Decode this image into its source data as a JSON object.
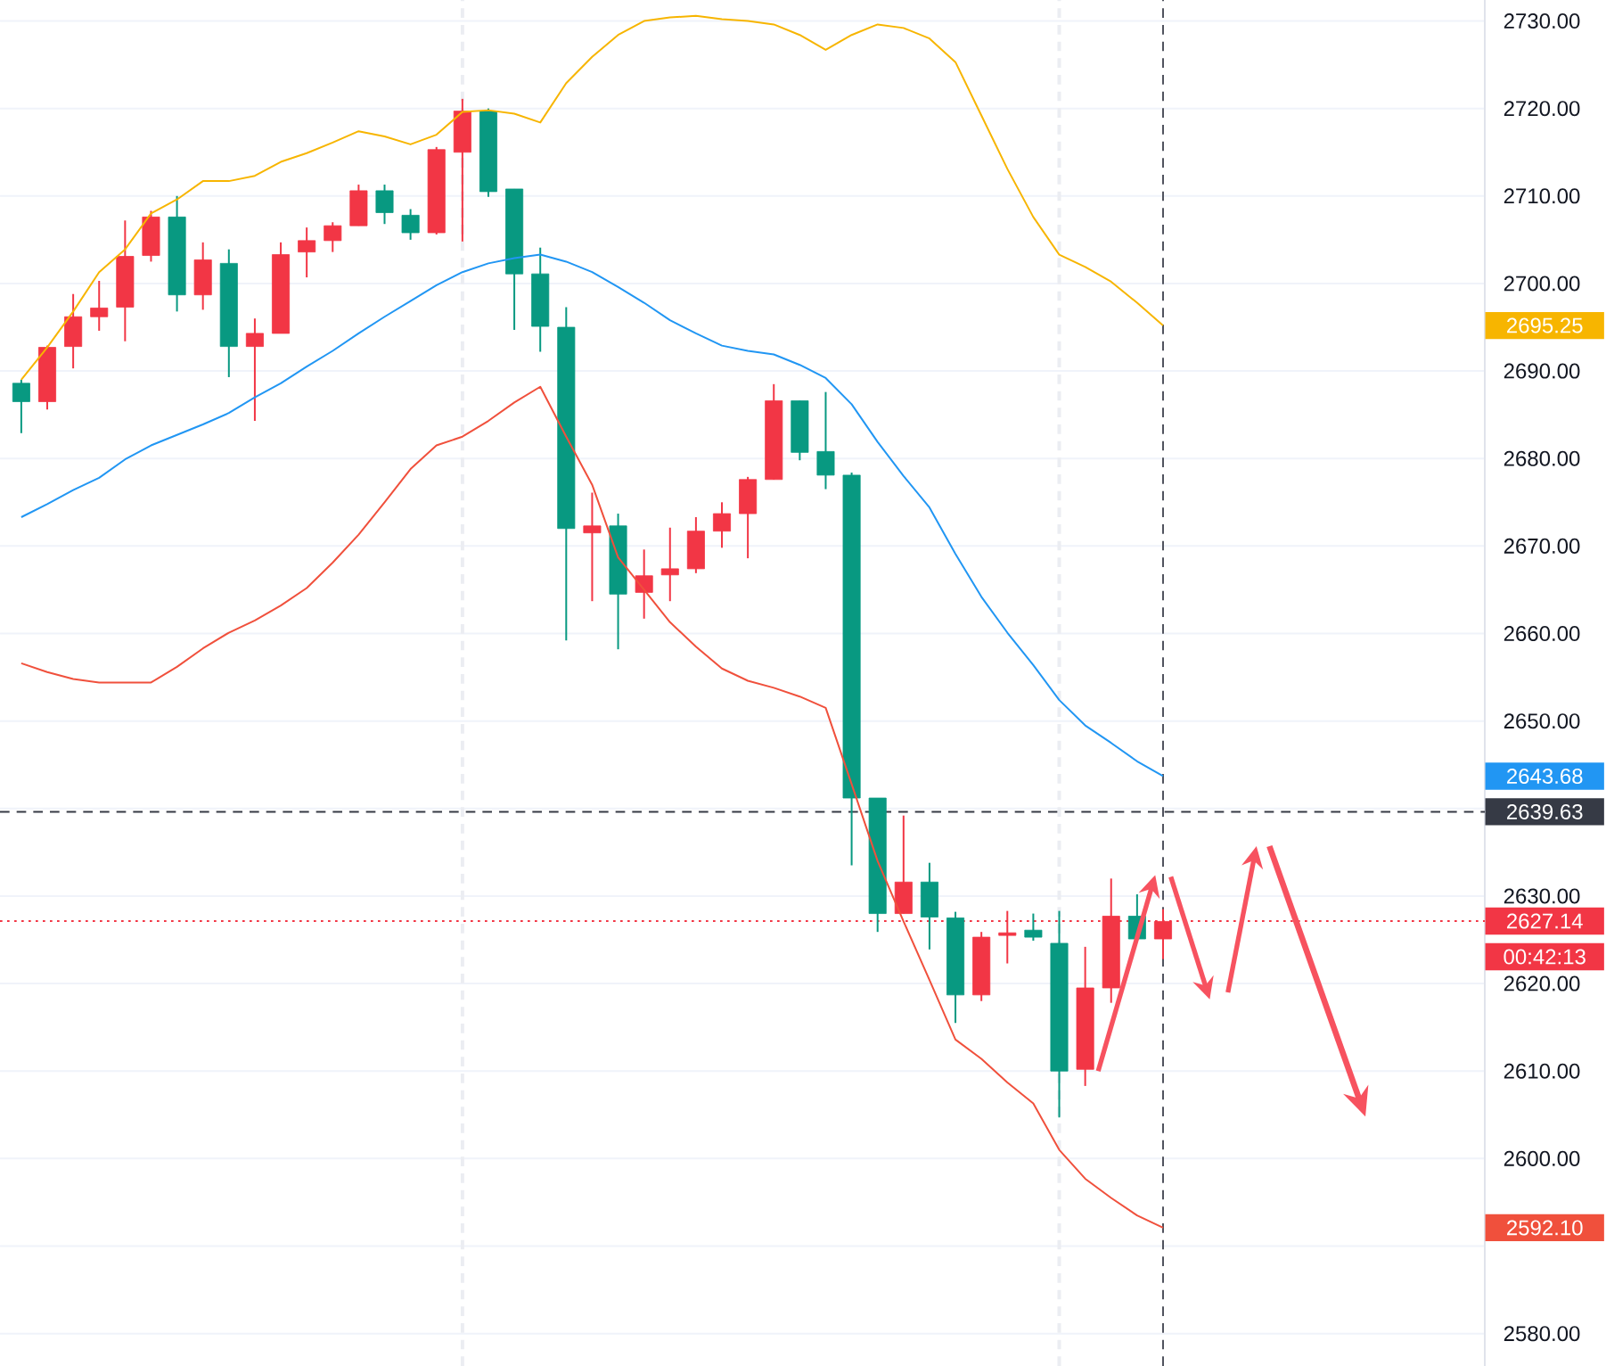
{
  "chart_data": {
    "type": "candlestick",
    "categories": [
      null,
      null,
      null,
      null,
      null,
      null,
      null,
      null,
      null,
      null,
      null,
      null,
      null,
      null,
      null,
      null,
      null,
      null,
      null,
      null,
      null,
      null,
      null,
      null,
      null,
      null,
      null,
      null,
      null,
      null,
      null,
      null,
      null,
      null,
      null,
      null,
      null,
      null,
      null,
      null,
      null,
      null,
      null,
      null,
      null
    ],
    "ohlc": [
      [
        2688.6,
        2689.0,
        2682.9,
        2686.5
      ],
      [
        2686.5,
        2692.9,
        2685.6,
        2692.7
      ],
      [
        2692.8,
        2698.8,
        2690.3,
        2696.2
      ],
      [
        2696.2,
        2700.3,
        2694.6,
        2697.2
      ],
      [
        2697.3,
        2707.2,
        2693.4,
        2703.1
      ],
      [
        2703.2,
        2708.3,
        2702.5,
        2707.6
      ],
      [
        2707.6,
        2710.0,
        2696.8,
        2698.7
      ],
      [
        2698.7,
        2704.7,
        2697.0,
        2702.7
      ],
      [
        2702.3,
        2703.9,
        2689.3,
        2692.8
      ],
      [
        2692.8,
        2696.0,
        2684.3,
        2694.3
      ],
      [
        2694.3,
        2704.7,
        2694.3,
        2703.3
      ],
      [
        2703.6,
        2706.4,
        2700.7,
        2704.9
      ],
      [
        2704.9,
        2707.0,
        2703.6,
        2706.6
      ],
      [
        2706.6,
        2711.3,
        2706.6,
        2710.6
      ],
      [
        2710.6,
        2711.3,
        2706.8,
        2708.1
      ],
      [
        2707.8,
        2708.5,
        2705.0,
        2705.8
      ],
      [
        2705.8,
        2715.6,
        2705.6,
        2715.3
      ],
      [
        2715.0,
        2721.1,
        2704.8,
        2719.7
      ],
      [
        2719.7,
        2720.0,
        2709.9,
        2710.5
      ],
      [
        2710.8,
        2710.8,
        2694.7,
        2701.1
      ],
      [
        2701.1,
        2704.1,
        2692.2,
        2695.1
      ],
      [
        2695.0,
        2697.3,
        2659.2,
        2672.0
      ],
      [
        2671.5,
        2676.1,
        2663.7,
        2672.3
      ],
      [
        2672.3,
        2673.7,
        2658.2,
        2664.5
      ],
      [
        2664.7,
        2669.6,
        2661.7,
        2666.6
      ],
      [
        2666.7,
        2672.1,
        2663.7,
        2667.4
      ],
      [
        2667.4,
        2673.3,
        2666.9,
        2671.7
      ],
      [
        2671.7,
        2675.0,
        2669.8,
        2673.7
      ],
      [
        2673.7,
        2677.9,
        2668.6,
        2677.6
      ],
      [
        2677.6,
        2688.5,
        2677.6,
        2686.6
      ],
      [
        2686.6,
        2686.6,
        2679.8,
        2680.7
      ],
      [
        2680.8,
        2687.6,
        2676.5,
        2678.1
      ],
      [
        2678.1,
        2678.4,
        2633.5,
        2641.2
      ],
      [
        2641.2,
        2641.2,
        2625.9,
        2628.0
      ],
      [
        2628.0,
        2639.2,
        2628.0,
        2631.6
      ],
      [
        2631.6,
        2633.8,
        2623.9,
        2627.6
      ],
      [
        2627.5,
        2628.2,
        2615.5,
        2618.7
      ],
      [
        2618.7,
        2625.9,
        2618.0,
        2625.3
      ],
      [
        2625.5,
        2628.3,
        2622.3,
        2625.8
      ],
      [
        2626.1,
        2628.0,
        2624.9,
        2625.3
      ],
      [
        2624.6,
        2628.3,
        2604.7,
        2610.0
      ],
      [
        2610.2,
        2624.2,
        2608.3,
        2619.5
      ],
      [
        2619.5,
        2632.0,
        2617.8,
        2627.7
      ],
      [
        2627.7,
        2630.2,
        2625.1,
        2625.1
      ],
      [
        2625.1,
        2628.5,
        2622.8,
        2627.1
      ]
    ],
    "colors": [
      "#089981",
      "#f23645",
      "#f23645",
      "#f23645",
      "#f23645",
      "#f23645",
      "#089981",
      "#f23645",
      "#089981",
      "#f23645",
      "#f23645",
      "#f23645",
      "#f23645",
      "#f23645",
      "#089981",
      "#089981",
      "#f23645",
      "#f23645",
      "#089981",
      "#089981",
      "#089981",
      "#089981",
      "#f23645",
      "#089981",
      "#f23645",
      "#f23645",
      "#f23645",
      "#f23645",
      "#f23645",
      "#f23645",
      "#089981",
      "#089981",
      "#089981",
      "#089981",
      "#f23645",
      "#089981",
      "#089981",
      "#f23645",
      "#f23645",
      "#089981",
      "#089981",
      "#f23645",
      "#f23645",
      "#089981",
      "#f23645"
    ],
    "series": [
      {
        "type": "line",
        "color": "#f7b500",
        "values": [
          2689.0,
          2692.7,
          2696.8,
          2701.3,
          2703.9,
          2708.0,
          2709.6,
          2711.7,
          2711.7,
          2712.3,
          2713.9,
          2714.9,
          2716.1,
          2717.4,
          2716.8,
          2715.9,
          2717.0,
          2719.6,
          2719.8,
          2719.4,
          2718.4,
          2722.9,
          2725.9,
          2728.4,
          2730.0,
          2730.4,
          2730.6,
          2730.2,
          2730.0,
          2729.6,
          2728.4,
          2726.7,
          2728.4,
          2729.6,
          2729.2,
          2728.0,
          2725.3,
          2719.2,
          2713.1,
          2707.6,
          2703.3,
          2701.9,
          2700.2,
          2697.8,
          2695.2
        ]
      },
      {
        "type": "line",
        "color": "#2196f3",
        "values": [
          2673.3,
          2674.8,
          2676.4,
          2677.8,
          2679.9,
          2681.5,
          2682.7,
          2683.9,
          2685.2,
          2687.0,
          2688.6,
          2690.5,
          2692.3,
          2694.3,
          2696.2,
          2698.0,
          2699.8,
          2701.3,
          2702.3,
          2702.9,
          2703.3,
          2702.5,
          2701.3,
          2699.6,
          2697.8,
          2695.8,
          2694.3,
          2692.9,
          2692.3,
          2691.9,
          2690.7,
          2689.2,
          2686.2,
          2681.9,
          2678.0,
          2674.4,
          2669.1,
          2664.2,
          2660.1,
          2656.4,
          2652.4,
          2649.5,
          2647.5,
          2645.4,
          2643.7
        ]
      },
      {
        "type": "line",
        "color": "#f0503c",
        "values": [
          2656.6,
          2655.6,
          2654.8,
          2654.4,
          2654.4,
          2654.4,
          2656.2,
          2658.3,
          2660.1,
          2661.5,
          2663.2,
          2665.2,
          2668.1,
          2671.3,
          2675.0,
          2678.8,
          2681.5,
          2682.5,
          2684.3,
          2686.4,
          2688.2,
          2682.5,
          2677.0,
          2668.7,
          2665.0,
          2661.3,
          2658.5,
          2656.0,
          2654.6,
          2653.8,
          2652.8,
          2651.5,
          2642.8,
          2634.0,
          2627.1,
          2620.4,
          2613.6,
          2611.4,
          2608.7,
          2606.3,
          2601.0,
          2597.7,
          2595.5,
          2593.5,
          2592.1
        ]
      }
    ],
    "ylim": [
      2576.3,
      2732.4
    ],
    "yticks": [
      {
        "value": 2580,
        "label": "2580.00"
      },
      {
        "value": 2590,
        "label": null
      },
      {
        "value": 2600,
        "label": "2600.00"
      },
      {
        "value": 2610,
        "label": "2610.00"
      },
      {
        "value": 2620,
        "label": "2620.00"
      },
      {
        "value": 2630,
        "label": "2630.00"
      },
      {
        "value": 2640,
        "label": null
      },
      {
        "value": 2650,
        "label": "2650.00"
      },
      {
        "value": 2660,
        "label": "2660.00"
      },
      {
        "value": 2670,
        "label": "2670.00"
      },
      {
        "value": 2680,
        "label": "2680.00"
      },
      {
        "value": 2690,
        "label": "2690.00"
      },
      {
        "value": 2700,
        "label": "2700.00"
      },
      {
        "value": 2710,
        "label": "2710.00"
      },
      {
        "value": 2720,
        "label": "2720.00"
      },
      {
        "value": 2730,
        "label": "2730.00"
      }
    ],
    "ref_lines": [
      {
        "axis": "y",
        "value": 2639.63,
        "label": "2639.63",
        "color": "#363a45",
        "line_style": "dashed"
      },
      {
        "axis": "y",
        "value": 2627.14,
        "label": "2627.14",
        "color": "#f23645",
        "line_style": "dotted"
      }
    ],
    "annotations": [
      "2695.25",
      "2643.68",
      "2592.10",
      "00:42:13"
    ],
    "grid": "y",
    "tick_labels": "y"
  }
}
